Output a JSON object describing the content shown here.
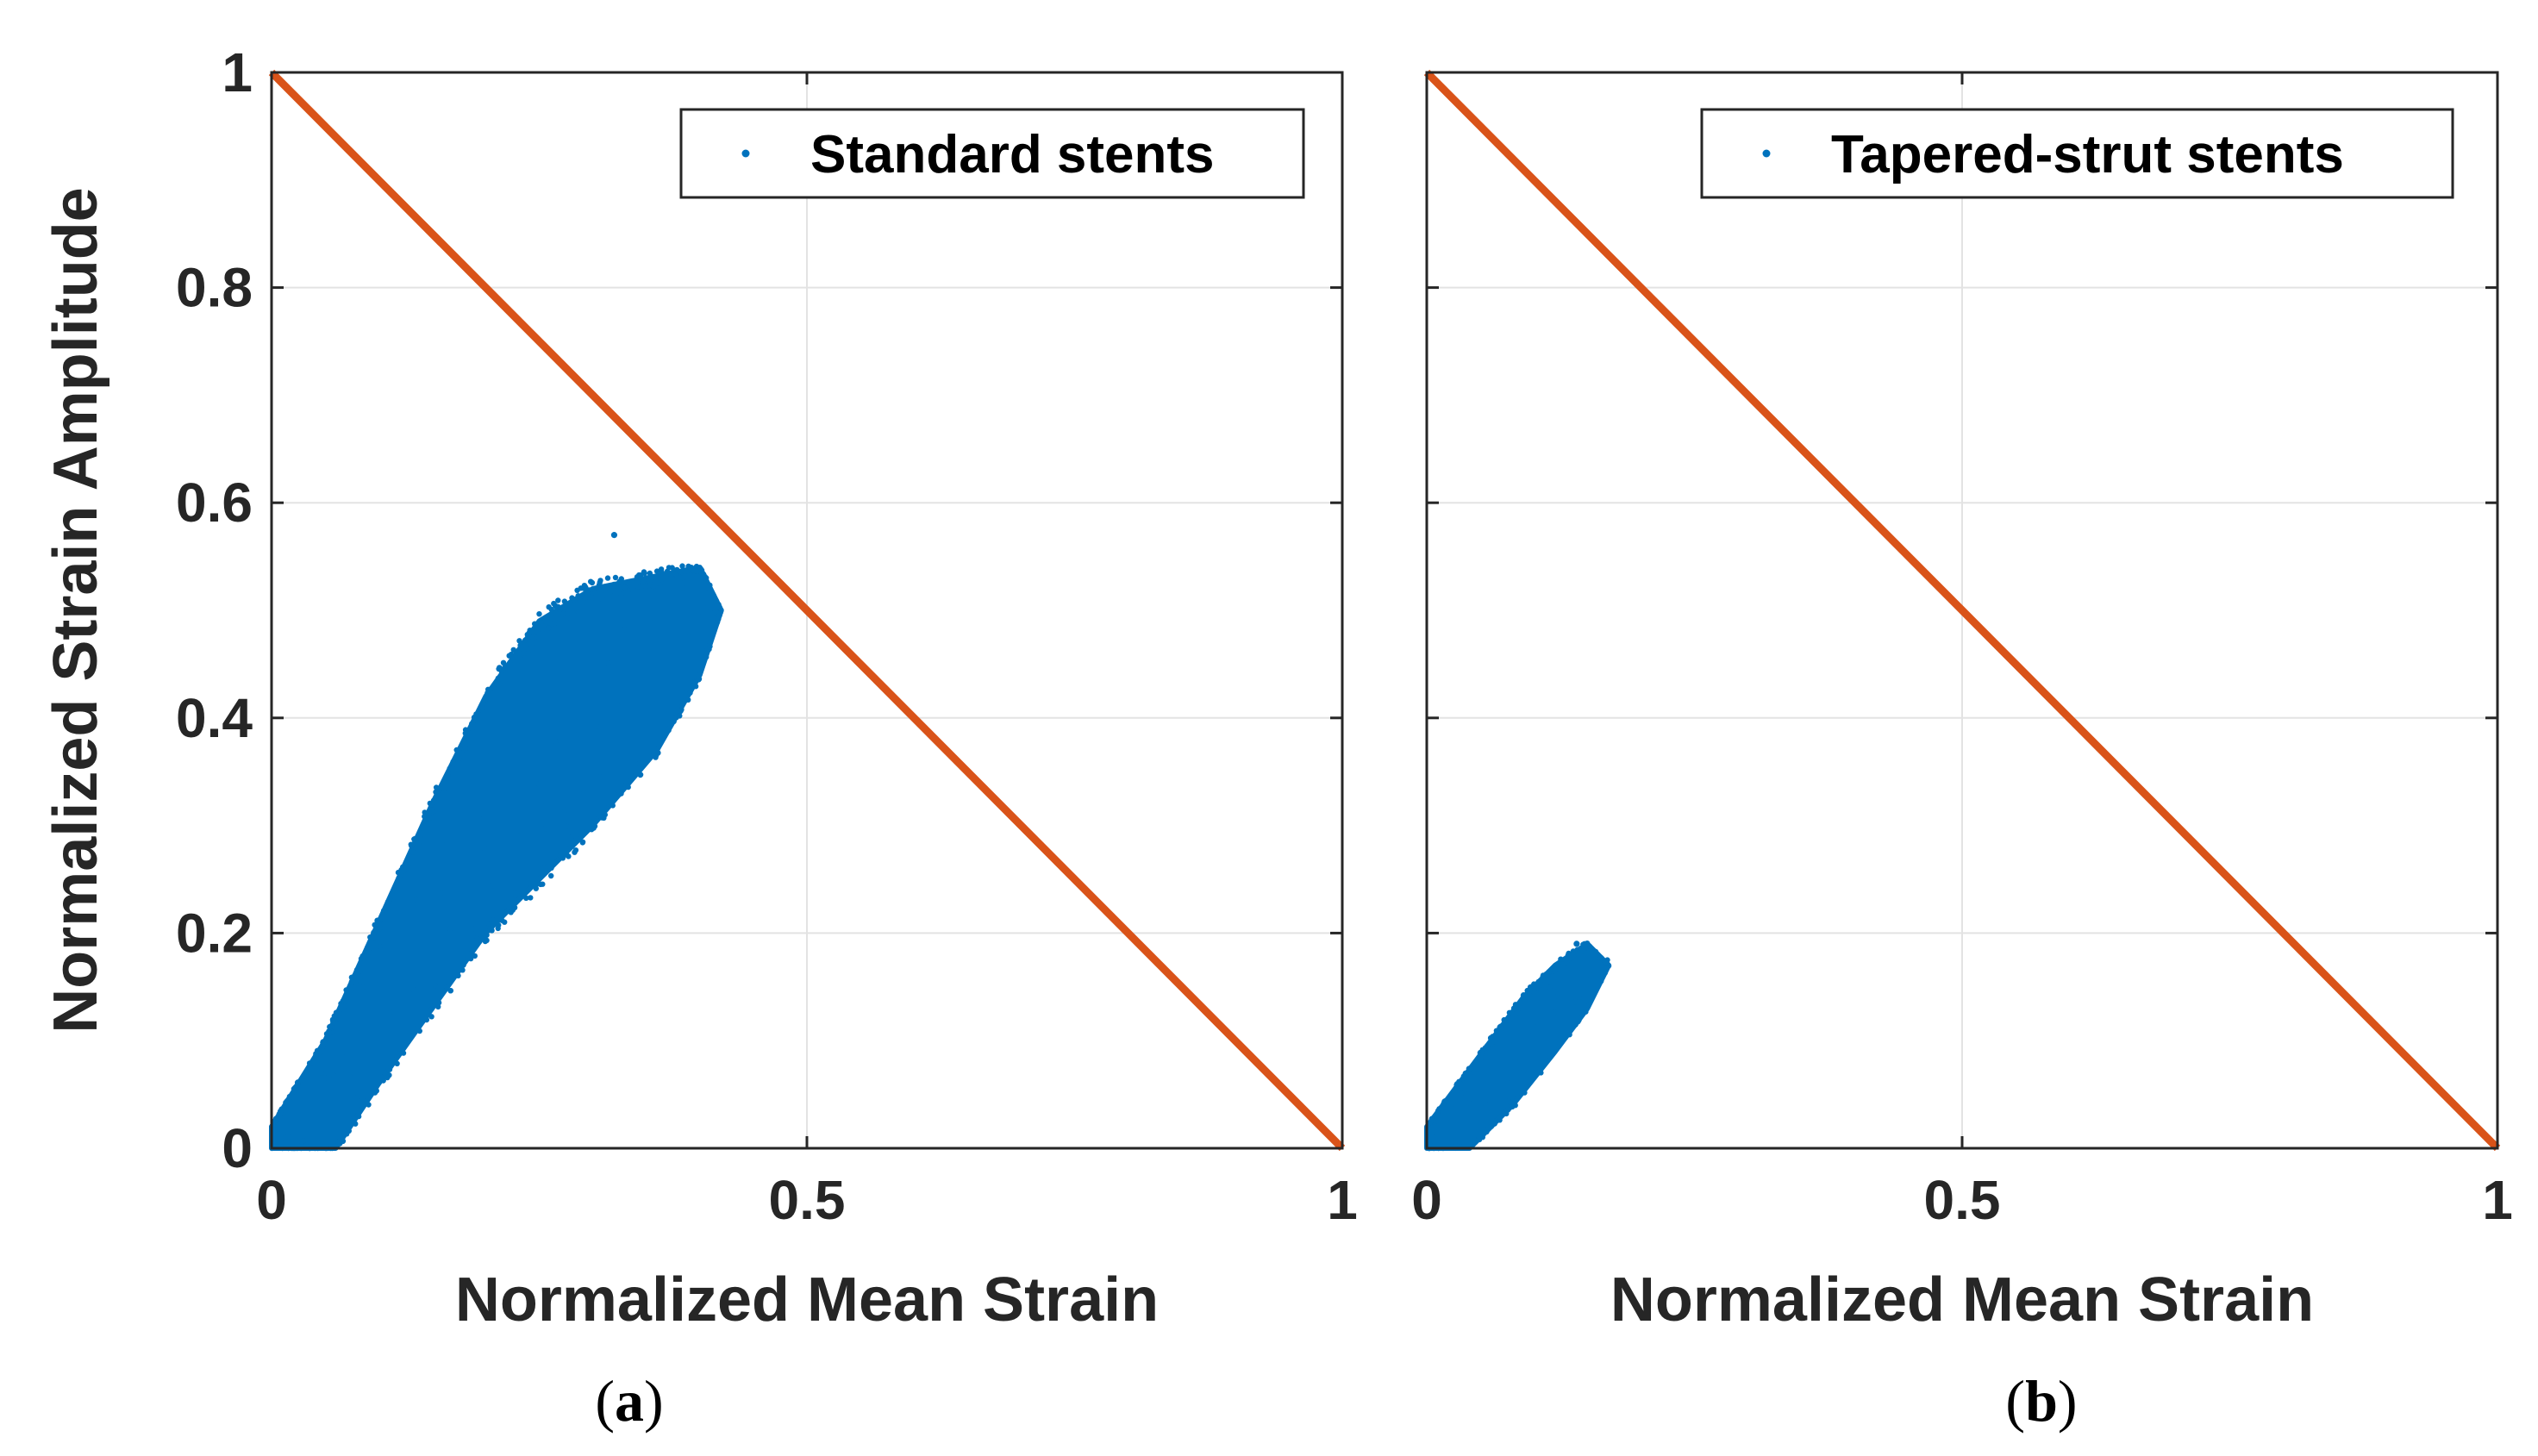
{
  "chart_data": [
    {
      "type": "scatter",
      "panel_label": "(a)",
      "panel_letter": "a",
      "xlabel": "Normalized Mean Strain",
      "ylabel": "Normalized Strain Amplitude",
      "xlim": [
        0,
        1
      ],
      "ylim": [
        0,
        1
      ],
      "xticks": [
        0,
        0.5,
        1
      ],
      "xtick_labels": [
        "0",
        "0.5",
        "1"
      ],
      "yticks": [
        0,
        0.2,
        0.4,
        0.6,
        0.8,
        1
      ],
      "ytick_labels": [
        "0",
        "0.2",
        "0.4",
        "0.6",
        "0.8",
        "1"
      ],
      "grid": true,
      "legend_position": "top-right",
      "series": [
        {
          "name": "Standard stents",
          "kind": "scatter",
          "color": "#0072BD",
          "cloud": {
            "x_range": [
              0,
              0.42
            ],
            "lower_edge": [
              [
                0.0,
                0.0
              ],
              [
                0.06,
                0.0
              ],
              [
                0.1,
                0.06
              ],
              [
                0.2,
                0.2
              ],
              [
                0.3,
                0.3
              ],
              [
                0.36,
                0.37
              ],
              [
                0.4,
                0.44
              ],
              [
                0.42,
                0.5
              ]
            ],
            "upper_edge": [
              [
                0.0,
                0.02
              ],
              [
                0.05,
                0.1
              ],
              [
                0.1,
                0.21
              ],
              [
                0.15,
                0.32
              ],
              [
                0.2,
                0.42
              ],
              [
                0.25,
                0.49
              ],
              [
                0.3,
                0.52
              ],
              [
                0.35,
                0.53
              ],
              [
                0.4,
                0.54
              ],
              [
                0.42,
                0.5
              ]
            ],
            "max_point": [
              0.32,
              0.57
            ]
          }
        },
        {
          "name": "",
          "kind": "line",
          "color": "#D95319",
          "points": [
            [
              0,
              1
            ],
            [
              1,
              0
            ]
          ]
        }
      ]
    },
    {
      "type": "scatter",
      "panel_label": "(b)",
      "panel_letter": "b",
      "xlabel": "Normalized Mean Strain",
      "ylabel": "",
      "xlim": [
        0,
        1
      ],
      "ylim": [
        0,
        1
      ],
      "xticks": [
        0,
        0.5,
        1
      ],
      "xtick_labels": [
        "0",
        "0.5",
        "1"
      ],
      "yticks": [
        0,
        0.2,
        0.4,
        0.6,
        0.8,
        1
      ],
      "ytick_labels": [],
      "grid": true,
      "legend_position": "top-right",
      "series": [
        {
          "name": "Tapered-strut stents",
          "kind": "scatter",
          "color": "#0072BD",
          "cloud": {
            "x_range": [
              0,
              0.17
            ],
            "lower_edge": [
              [
                0.0,
                0.0
              ],
              [
                0.04,
                0.0
              ],
              [
                0.08,
                0.04
              ],
              [
                0.12,
                0.09
              ],
              [
                0.15,
                0.13
              ],
              [
                0.17,
                0.17
              ]
            ],
            "upper_edge": [
              [
                0.0,
                0.02
              ],
              [
                0.03,
                0.06
              ],
              [
                0.06,
                0.1
              ],
              [
                0.09,
                0.14
              ],
              [
                0.12,
                0.17
              ],
              [
                0.15,
                0.19
              ],
              [
                0.17,
                0.17
              ]
            ],
            "max_point": [
              0.14,
              0.19
            ]
          }
        },
        {
          "name": "",
          "kind": "line",
          "color": "#D95319",
          "points": [
            [
              0,
              1
            ],
            [
              1,
              0
            ]
          ]
        }
      ]
    }
  ]
}
